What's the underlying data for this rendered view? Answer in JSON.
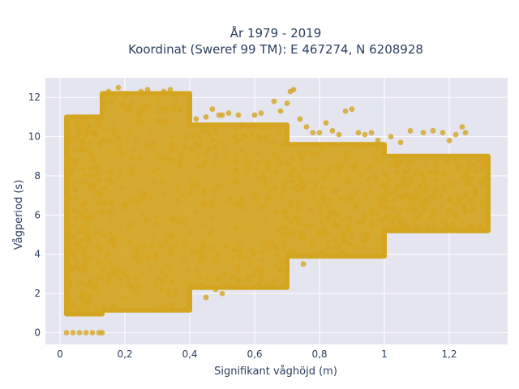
{
  "chart_data": {
    "type": "scatter",
    "title_line1": "År 1979 - 2019",
    "title_line2": "Koordinat (Sweref 99 TM): E 467274, N 6208928",
    "xlabel": "Signifikant våghöjd (m)",
    "ylabel": "Vågperiod (s)",
    "xlim": [
      -0.045,
      1.38
    ],
    "ylim": [
      -0.6,
      13.0
    ],
    "x_ticks": [
      0,
      0.2,
      0.4,
      0.6,
      0.8,
      1.0,
      1.2
    ],
    "x_tick_labels": [
      "0",
      "0,2",
      "0,4",
      "0,6",
      "0,8",
      "1",
      "1,2"
    ],
    "y_ticks": [
      0,
      2,
      4,
      6,
      8,
      10,
      12
    ],
    "y_tick_labels": [
      "0",
      "2",
      "4",
      "6",
      "8",
      "10",
      "12"
    ],
    "grid": true,
    "marker_color": "#D4A520",
    "background_color": "#E5E5F0",
    "series": [
      {
        "points": [
          [
            0.02,
            0
          ],
          [
            0.04,
            0
          ],
          [
            0.06,
            0
          ],
          [
            0.08,
            0
          ],
          [
            0.1,
            0
          ],
          [
            0.12,
            0
          ],
          [
            0.13,
            0
          ],
          [
            0.02,
            1.0
          ],
          [
            0.02,
            1.6
          ],
          [
            0.03,
            2.4
          ],
          [
            0.03,
            3.2
          ],
          [
            0.02,
            6.2
          ],
          [
            0.03,
            6.9
          ],
          [
            0.05,
            3.6
          ],
          [
            0.05,
            7.3
          ],
          [
            0.06,
            9.3
          ],
          [
            0.07,
            9.8
          ],
          [
            0.08,
            10.3
          ],
          [
            0.09,
            10.5
          ],
          [
            0.1,
            9.0
          ],
          [
            0.1,
            10.2
          ],
          [
            0.11,
            10.1
          ],
          [
            0.12,
            11.0
          ],
          [
            0.13,
            11.3
          ],
          [
            0.14,
            11.7
          ],
          [
            0.13,
            12.0
          ],
          [
            0.15,
            12.3
          ],
          [
            0.16,
            11.8
          ],
          [
            0.17,
            12.1
          ],
          [
            0.18,
            12.5
          ],
          [
            0.19,
            12.2
          ],
          [
            0.2,
            12.1
          ],
          [
            0.21,
            11.5
          ],
          [
            0.22,
            11.7
          ],
          [
            0.24,
            11.1
          ],
          [
            0.25,
            12.3
          ],
          [
            0.26,
            11.4
          ],
          [
            0.27,
            12.4
          ],
          [
            0.3,
            10.8
          ],
          [
            0.32,
            12.3
          ],
          [
            0.34,
            12.4
          ],
          [
            0.35,
            11.4
          ],
          [
            0.37,
            11.4
          ],
          [
            0.4,
            11.0
          ],
          [
            0.42,
            10.9
          ],
          [
            0.44,
            10.3
          ],
          [
            0.45,
            11.0
          ],
          [
            0.47,
            11.4
          ],
          [
            0.49,
            11.1
          ],
          [
            0.5,
            11.1
          ],
          [
            0.52,
            11.2
          ],
          [
            0.55,
            11.1
          ],
          [
            0.56,
            10.6
          ],
          [
            0.58,
            10.5
          ],
          [
            0.6,
            11.1
          ],
          [
            0.62,
            11.2
          ],
          [
            0.64,
            10.5
          ],
          [
            0.66,
            11.8
          ],
          [
            0.68,
            11.3
          ],
          [
            0.7,
            11.7
          ],
          [
            0.71,
            12.3
          ],
          [
            0.72,
            12.4
          ],
          [
            0.74,
            10.9
          ],
          [
            0.76,
            10.5
          ],
          [
            0.78,
            10.2
          ],
          [
            0.8,
            10.2
          ],
          [
            0.82,
            10.7
          ],
          [
            0.84,
            10.3
          ],
          [
            0.86,
            10.1
          ],
          [
            0.88,
            11.3
          ],
          [
            0.9,
            11.4
          ],
          [
            0.92,
            10.2
          ],
          [
            0.94,
            10.1
          ],
          [
            0.96,
            10.2
          ],
          [
            0.98,
            9.8
          ],
          [
            1.02,
            10.0
          ],
          [
            1.05,
            9.7
          ],
          [
            1.08,
            10.3
          ],
          [
            1.12,
            10.2
          ],
          [
            1.15,
            10.3
          ],
          [
            1.18,
            10.2
          ],
          [
            1.2,
            9.8
          ],
          [
            1.22,
            10.1
          ],
          [
            1.24,
            10.5
          ],
          [
            1.25,
            10.2
          ],
          [
            1.28,
            7.2
          ],
          [
            1.3,
            8.8
          ],
          [
            1.31,
            8.6
          ],
          [
            0.45,
            1.8
          ],
          [
            0.5,
            2.0
          ],
          [
            0.55,
            2.7
          ],
          [
            0.62,
            2.9
          ],
          [
            0.7,
            3.3
          ],
          [
            0.8,
            4.1
          ],
          [
            0.9,
            4.9
          ],
          [
            1.0,
            5.3
          ],
          [
            1.1,
            5.9
          ],
          [
            1.2,
            6.8
          ],
          [
            0.48,
            2.2
          ],
          [
            0.52,
            2.4
          ],
          [
            0.58,
            2.7
          ],
          [
            0.62,
            2.7
          ],
          [
            0.68,
            3.2
          ],
          [
            0.75,
            3.5
          ],
          [
            0.85,
            4.3
          ],
          [
            0.95,
            5.0
          ],
          [
            1.05,
            5.6
          ],
          [
            1.15,
            6.2
          ],
          [
            1.25,
            7.0
          ]
        ]
      }
    ],
    "density_regions": [
      {
        "x": [
          0.02,
          0.13
        ],
        "y": [
          0.95,
          11.0
        ]
      },
      {
        "x": [
          0.13,
          0.4
        ],
        "y": [
          1.15,
          12.2
        ]
      },
      {
        "x": [
          0.4,
          0.7
        ],
        "y": [
          2.3,
          10.6
        ]
      },
      {
        "x": [
          0.7,
          1.0
        ],
        "y": [
          3.9,
          9.6
        ]
      },
      {
        "x": [
          1.0,
          1.32
        ],
        "y": [
          5.2,
          9.0
        ]
      }
    ]
  }
}
